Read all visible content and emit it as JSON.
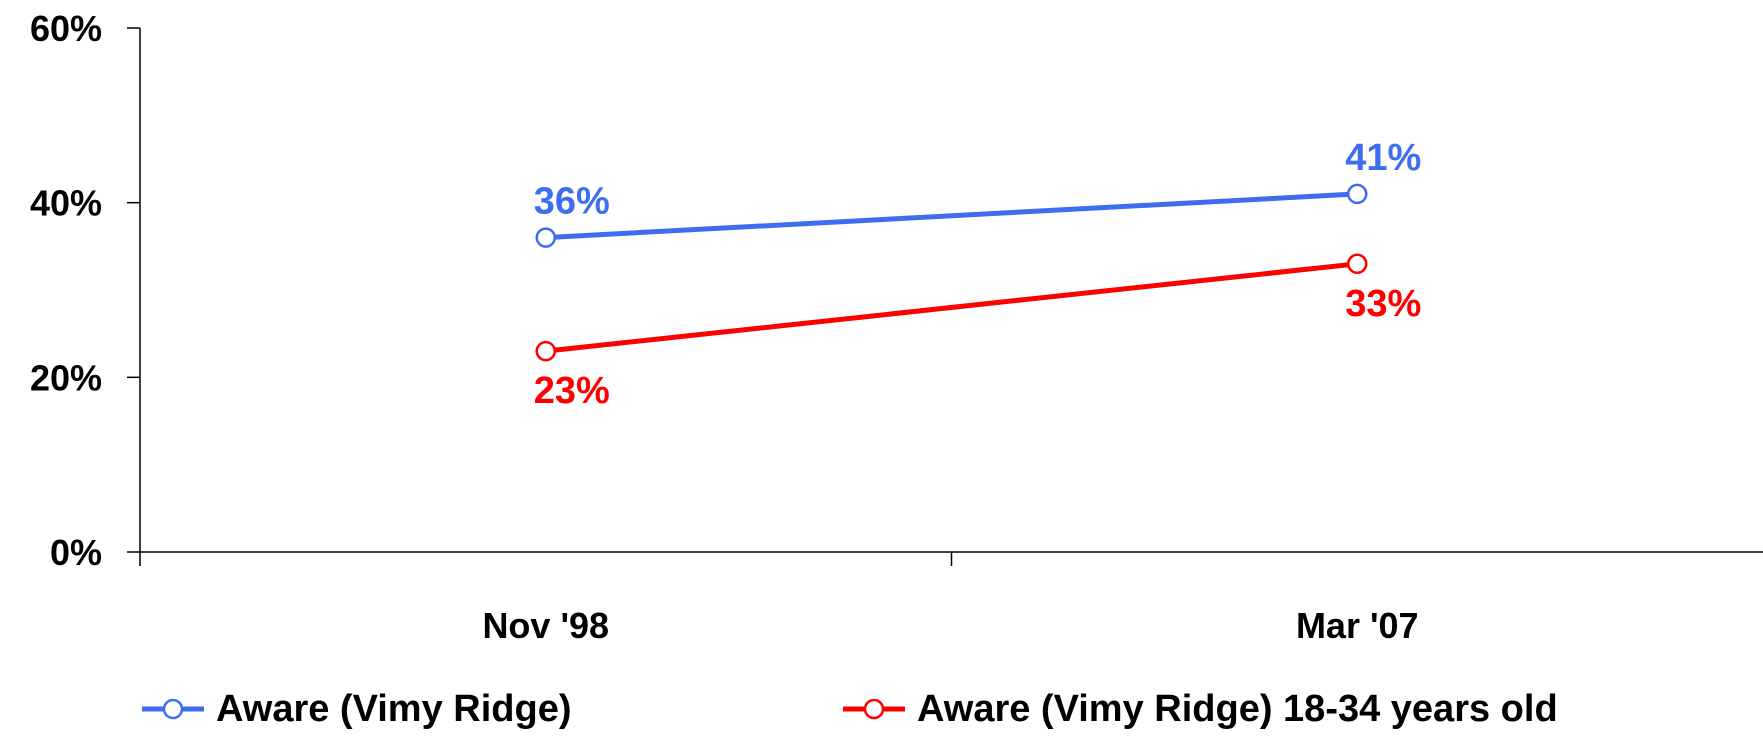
{
  "chart_data": {
    "type": "line",
    "categories": [
      "Nov '98",
      "Mar '07"
    ],
    "series": [
      {
        "name": "Aware (Vimy Ridge)",
        "values": [
          36,
          41
        ],
        "labels": [
          "36%",
          "41%"
        ],
        "color": "#3d6ef2"
      },
      {
        "name": "Aware (Vimy Ridge) 18-34 years old",
        "values": [
          23,
          33
        ],
        "labels": [
          "23%",
          "33%"
        ],
        "color": "#ff0000"
      }
    ],
    "y_ticks": [
      "0%",
      "20%",
      "40%",
      "60%"
    ],
    "ylim": [
      0,
      60
    ],
    "grid": false,
    "legend": "bottom"
  }
}
